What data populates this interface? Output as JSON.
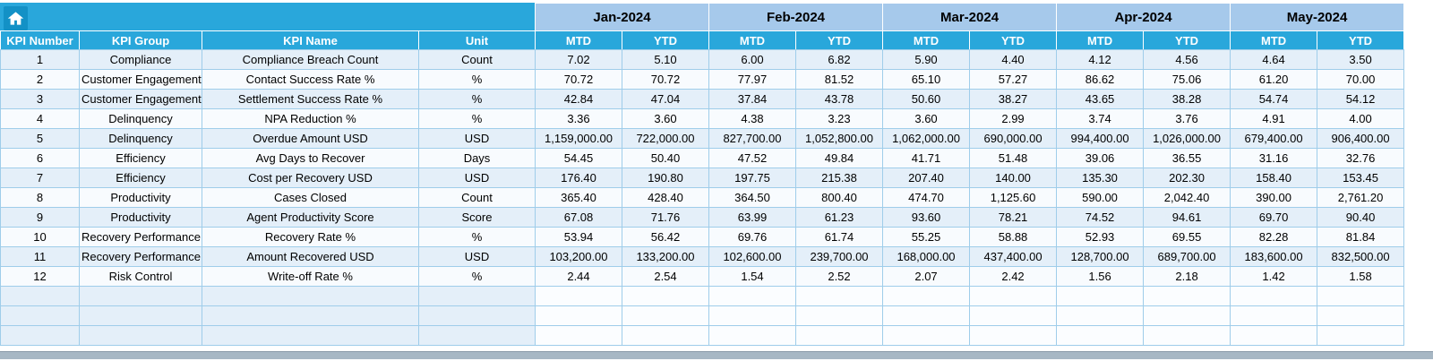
{
  "table": {
    "months": [
      "Jan-2024",
      "Feb-2024",
      "Mar-2024",
      "Apr-2024",
      "May-2024"
    ],
    "sub_headers": [
      "MTD",
      "YTD"
    ],
    "left_headers": [
      "KPI Number",
      "KPI Group",
      "KPI Name",
      "Unit"
    ],
    "rows": [
      {
        "number": "1",
        "group": "Compliance",
        "name": "Compliance Breach Count",
        "unit": "Count",
        "values": [
          "7.02",
          "5.10",
          "6.00",
          "6.82",
          "5.90",
          "4.40",
          "4.12",
          "4.56",
          "4.64",
          "3.50"
        ]
      },
      {
        "number": "2",
        "group": "Customer Engagement",
        "name": "Contact Success Rate %",
        "unit": "%",
        "values": [
          "70.72",
          "70.72",
          "77.97",
          "81.52",
          "65.10",
          "57.27",
          "86.62",
          "75.06",
          "61.20",
          "70.00"
        ]
      },
      {
        "number": "3",
        "group": "Customer Engagement",
        "name": "Settlement Success Rate %",
        "unit": "%",
        "values": [
          "42.84",
          "47.04",
          "37.84",
          "43.78",
          "50.60",
          "38.27",
          "43.65",
          "38.28",
          "54.74",
          "54.12"
        ]
      },
      {
        "number": "4",
        "group": "Delinquency",
        "name": "NPA Reduction %",
        "unit": "%",
        "values": [
          "3.36",
          "3.60",
          "4.38",
          "3.23",
          "3.60",
          "2.99",
          "3.74",
          "3.76",
          "4.91",
          "4.00"
        ]
      },
      {
        "number": "5",
        "group": "Delinquency",
        "name": "Overdue Amount USD",
        "unit": "USD",
        "values": [
          "1,159,000.00",
          "722,000.00",
          "827,700.00",
          "1,052,800.00",
          "1,062,000.00",
          "690,000.00",
          "994,400.00",
          "1,026,000.00",
          "679,400.00",
          "906,400.00"
        ]
      },
      {
        "number": "6",
        "group": "Efficiency",
        "name": "Avg Days to Recover",
        "unit": "Days",
        "values": [
          "54.45",
          "50.40",
          "47.52",
          "49.84",
          "41.71",
          "51.48",
          "39.06",
          "36.55",
          "31.16",
          "32.76"
        ]
      },
      {
        "number": "7",
        "group": "Efficiency",
        "name": "Cost per Recovery USD",
        "unit": "USD",
        "values": [
          "176.40",
          "190.80",
          "197.75",
          "215.38",
          "207.40",
          "140.00",
          "135.30",
          "202.30",
          "158.40",
          "153.45"
        ]
      },
      {
        "number": "8",
        "group": "Productivity",
        "name": "Cases Closed",
        "unit": "Count",
        "values": [
          "365.40",
          "428.40",
          "364.50",
          "800.40",
          "474.70",
          "1,125.60",
          "590.00",
          "2,042.40",
          "390.00",
          "2,761.20"
        ]
      },
      {
        "number": "9",
        "group": "Productivity",
        "name": "Agent Productivity Score",
        "unit": "Score",
        "values": [
          "67.08",
          "71.76",
          "63.99",
          "61.23",
          "93.60",
          "78.21",
          "74.52",
          "94.61",
          "69.70",
          "90.40"
        ]
      },
      {
        "number": "10",
        "group": "Recovery Performance",
        "name": "Recovery Rate %",
        "unit": "%",
        "values": [
          "53.94",
          "56.42",
          "69.76",
          "61.74",
          "55.25",
          "58.88",
          "52.93",
          "69.55",
          "82.28",
          "81.84"
        ]
      },
      {
        "number": "11",
        "group": "Recovery Performance",
        "name": "Amount Recovered USD",
        "unit": "USD",
        "values": [
          "103,200.00",
          "133,200.00",
          "102,600.00",
          "239,700.00",
          "168,000.00",
          "437,400.00",
          "128,700.00",
          "689,700.00",
          "183,600.00",
          "832,500.00"
        ]
      },
      {
        "number": "12",
        "group": "Risk Control",
        "name": "Write-off Rate %",
        "unit": "%",
        "values": [
          "2.44",
          "2.54",
          "1.54",
          "2.52",
          "2.07",
          "2.42",
          "1.56",
          "2.18",
          "1.42",
          "1.58"
        ]
      }
    ],
    "empty_row_count": 3
  },
  "colors": {
    "header_cyan": "#29A7DB",
    "month_blue": "#A6C9EB",
    "stripe_blue": "#E4EFF9",
    "stripe_white": "#F8FBFE",
    "grid_blue": "#9FCDEA",
    "icon_box": "#1391C6",
    "bottom_band": "#A7B7C4"
  }
}
